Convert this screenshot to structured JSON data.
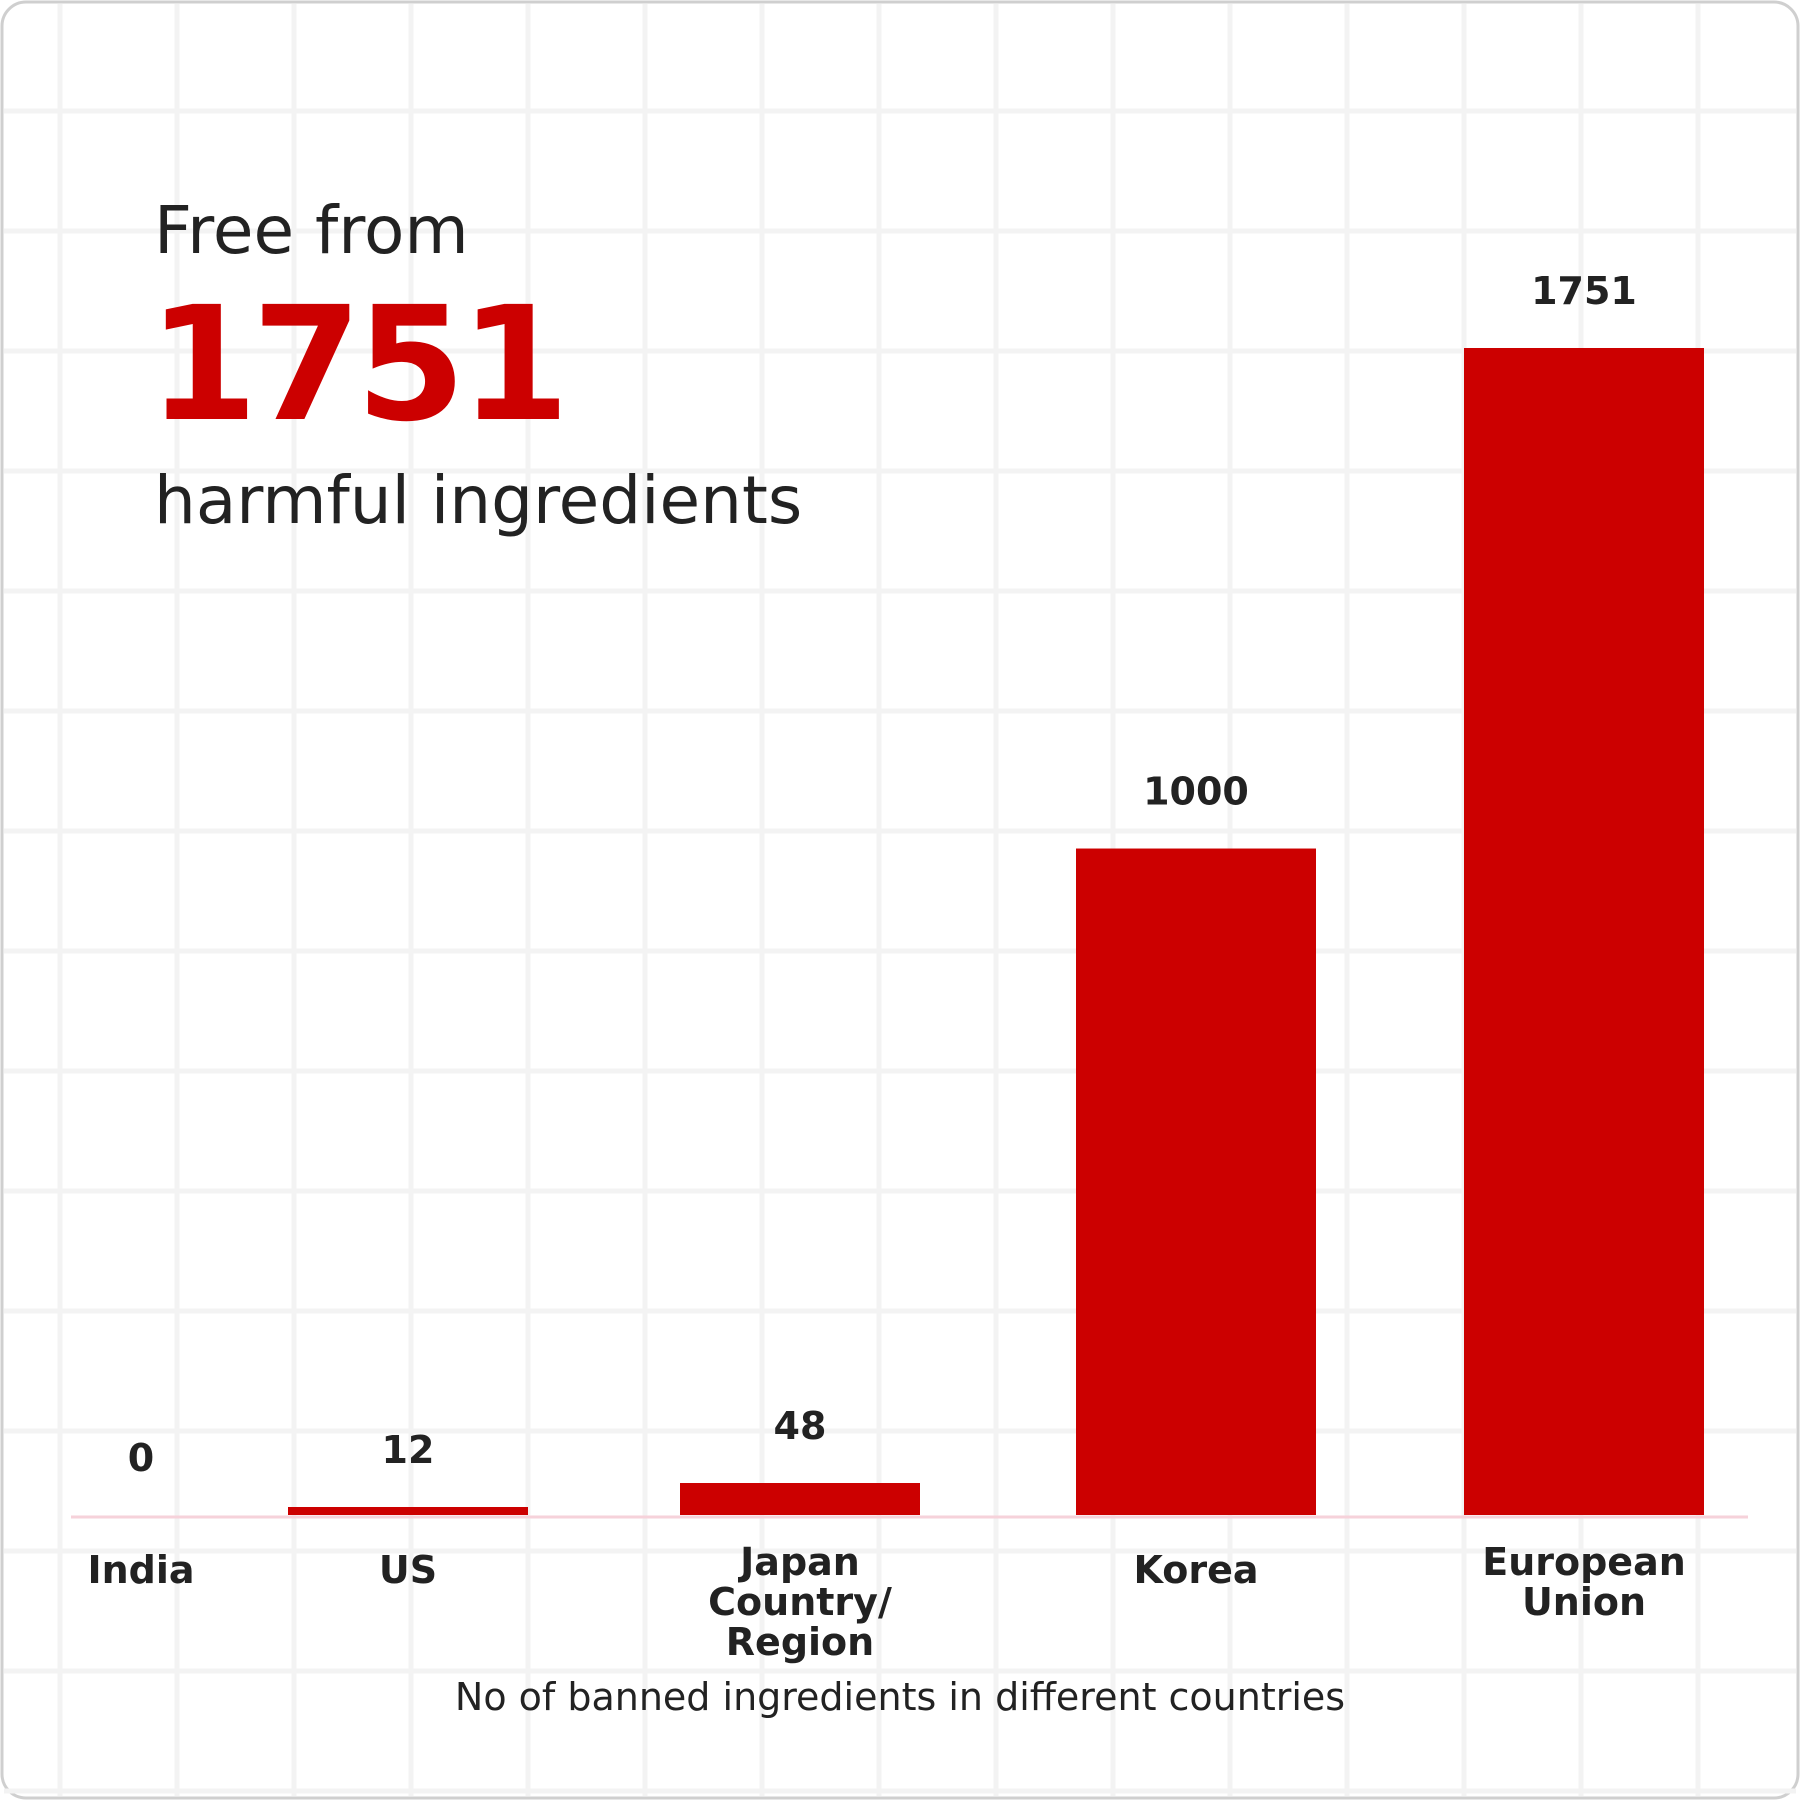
{
  "header": {
    "line1": "Free from",
    "highlight": "1751",
    "line2": "harmful ingredients"
  },
  "chart_data": {
    "type": "bar",
    "caption": "No of banned ingredients in different countries",
    "categories": [
      "India",
      "US",
      "Japan Country/ Region",
      "Korea",
      "European Union"
    ],
    "values": [
      0,
      12,
      48,
      1000,
      1751
    ],
    "color": "#cc0000",
    "grid": true
  }
}
